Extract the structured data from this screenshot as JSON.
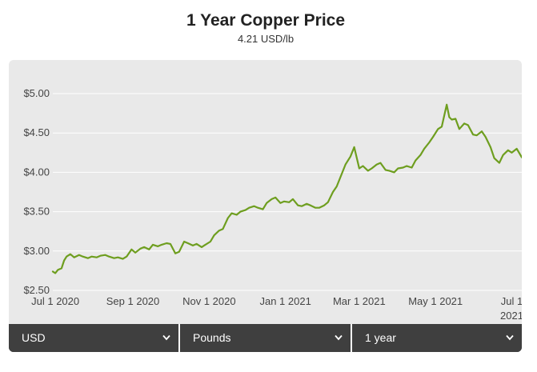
{
  "header": {
    "title": "1 Year Copper Price",
    "subtitle": "4.21 USD/lb"
  },
  "controls": {
    "currency": "USD",
    "unit": "Pounds",
    "range": "1 year"
  },
  "colors": {
    "line": "#6e9e1f",
    "grid": "#ffffff",
    "panel": "#e9e9e9",
    "controls_bg": "#3f3f3f"
  },
  "icons": {
    "dropdown": "chevron-down-icon"
  },
  "chart_data": {
    "type": "line",
    "title": "1 Year Copper Price",
    "subtitle": "4.21 USD/lb",
    "xlabel": "",
    "ylabel": "",
    "grid": true,
    "legend": "none",
    "ylim": [
      2.5,
      5.0
    ],
    "xlim": [
      "2020-06-29",
      "2021-07-09"
    ],
    "y_ticks": [
      {
        "value": 2.5,
        "label": "$2.50"
      },
      {
        "value": 3.0,
        "label": "$3.00"
      },
      {
        "value": 3.5,
        "label": "$3.50"
      },
      {
        "value": 4.0,
        "label": "$4.00"
      },
      {
        "value": 4.5,
        "label": "$4.50"
      },
      {
        "value": 5.0,
        "label": "$5.00"
      }
    ],
    "x_ticks": [
      {
        "date": "2020-07-01",
        "label": "Jul 1 2020"
      },
      {
        "date": "2020-09-01",
        "label": "Sep 1 2020"
      },
      {
        "date": "2020-11-01",
        "label": "Nov 1 2020"
      },
      {
        "date": "2021-01-01",
        "label": "Jan 1 2021"
      },
      {
        "date": "2021-03-01",
        "label": "Mar 1 2021"
      },
      {
        "date": "2021-05-01",
        "label": "May 1 2021"
      },
      {
        "date": "2021-07-01",
        "label": "Jul 1",
        "label2": "2021"
      }
    ],
    "series": [
      {
        "x": [
          "2020-06-29",
          "2020-07-01",
          "2020-07-03",
          "2020-07-06",
          "2020-07-08",
          "2020-07-10",
          "2020-07-13",
          "2020-07-16",
          "2020-07-20",
          "2020-07-23",
          "2020-07-27",
          "2020-07-30",
          "2020-08-03",
          "2020-08-06",
          "2020-08-10",
          "2020-08-13",
          "2020-08-17",
          "2020-08-20",
          "2020-08-24",
          "2020-08-27",
          "2020-08-31",
          "2020-09-03",
          "2020-09-07",
          "2020-09-10",
          "2020-09-14",
          "2020-09-17",
          "2020-09-21",
          "2020-09-24",
          "2020-09-28",
          "2020-10-01",
          "2020-10-05",
          "2020-10-08",
          "2020-10-12",
          "2020-10-15",
          "2020-10-19",
          "2020-10-22",
          "2020-10-26",
          "2020-10-29",
          "2020-11-02",
          "2020-11-05",
          "2020-11-09",
          "2020-11-12",
          "2020-11-16",
          "2020-11-19",
          "2020-11-23",
          "2020-11-26",
          "2020-11-30",
          "2020-12-03",
          "2020-12-07",
          "2020-12-10",
          "2020-12-14",
          "2020-12-17",
          "2020-12-21",
          "2020-12-24",
          "2020-12-28",
          "2020-12-31",
          "2021-01-04",
          "2021-01-07",
          "2021-01-11",
          "2021-01-14",
          "2021-01-18",
          "2021-01-21",
          "2021-01-25",
          "2021-01-28",
          "2021-02-01",
          "2021-02-04",
          "2021-02-08",
          "2021-02-11",
          "2021-02-15",
          "2021-02-18",
          "2021-02-22",
          "2021-02-25",
          "2021-03-01",
          "2021-03-04",
          "2021-03-08",
          "2021-03-11",
          "2021-03-15",
          "2021-03-18",
          "2021-03-22",
          "2021-03-25",
          "2021-03-29",
          "2021-04-01",
          "2021-04-05",
          "2021-04-08",
          "2021-04-12",
          "2021-04-15",
          "2021-04-19",
          "2021-04-22",
          "2021-04-26",
          "2021-04-29",
          "2021-05-03",
          "2021-05-06",
          "2021-05-10",
          "2021-05-12",
          "2021-05-14",
          "2021-05-17",
          "2021-05-20",
          "2021-05-24",
          "2021-05-27",
          "2021-05-31",
          "2021-06-03",
          "2021-06-07",
          "2021-06-10",
          "2021-06-14",
          "2021-06-17",
          "2021-06-21",
          "2021-06-24",
          "2021-06-28",
          "2021-07-01",
          "2021-07-05",
          "2021-07-09"
        ],
        "values": [
          2.74,
          2.72,
          2.76,
          2.78,
          2.88,
          2.93,
          2.96,
          2.92,
          2.95,
          2.93,
          2.91,
          2.93,
          2.92,
          2.94,
          2.95,
          2.93,
          2.91,
          2.92,
          2.9,
          2.93,
          3.02,
          2.98,
          3.03,
          3.05,
          3.02,
          3.08,
          3.06,
          3.08,
          3.1,
          3.09,
          2.97,
          2.99,
          3.12,
          3.1,
          3.07,
          3.09,
          3.05,
          3.08,
          3.12,
          3.2,
          3.26,
          3.28,
          3.42,
          3.48,
          3.46,
          3.5,
          3.52,
          3.55,
          3.57,
          3.55,
          3.53,
          3.61,
          3.66,
          3.68,
          3.61,
          3.63,
          3.62,
          3.66,
          3.58,
          3.57,
          3.6,
          3.58,
          3.55,
          3.55,
          3.58,
          3.62,
          3.75,
          3.82,
          3.98,
          4.1,
          4.2,
          4.32,
          4.05,
          4.08,
          4.02,
          4.05,
          4.1,
          4.12,
          4.03,
          4.02,
          4.0,
          4.05,
          4.06,
          4.08,
          4.06,
          4.15,
          4.22,
          4.3,
          4.38,
          4.45,
          4.55,
          4.58,
          4.86,
          4.7,
          4.67,
          4.68,
          4.55,
          4.62,
          4.6,
          4.48,
          4.47,
          4.52,
          4.45,
          4.32,
          4.18,
          4.12,
          4.22,
          4.28,
          4.25,
          4.3,
          4.19
        ]
      }
    ]
  }
}
